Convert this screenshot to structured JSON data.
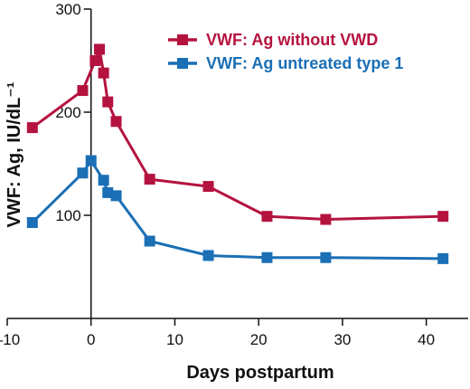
{
  "chart_data": {
    "type": "line",
    "title": "",
    "xlabel": "Days postpartum",
    "ylabel": "VWF: Ag, IU/dL⁻¹",
    "xlim": [
      -10,
      45
    ],
    "ylim": [
      0,
      300
    ],
    "x_ticks": [
      -10,
      0,
      10,
      20,
      30,
      40
    ],
    "x_tick_labels": [
      "–10",
      "0",
      "10",
      "20",
      "30",
      "40"
    ],
    "y_ticks": [
      100,
      200,
      300
    ],
    "y_tick_labels": [
      "100",
      "200",
      "300"
    ],
    "grid": false,
    "legend_position": "top-right",
    "series": [
      {
        "name": "VWF: Ag without VWD",
        "color": "#b5133f",
        "marker": "square",
        "x": [
          -7,
          -1,
          0.5,
          1,
          1.5,
          2,
          3,
          7,
          14,
          21,
          28,
          42
        ],
        "y": [
          185,
          221,
          250,
          261,
          238,
          210,
          191,
          135,
          128,
          99,
          96,
          99
        ]
      },
      {
        "name": "VWF: Ag untreated type 1",
        "color": "#1a6fb5",
        "marker": "square",
        "x": [
          -7,
          -1,
          0,
          1.5,
          2,
          3,
          7,
          14,
          21,
          28,
          42
        ],
        "y": [
          93,
          141,
          153,
          134,
          122,
          119,
          75,
          61,
          59,
          59,
          58
        ]
      }
    ]
  }
}
